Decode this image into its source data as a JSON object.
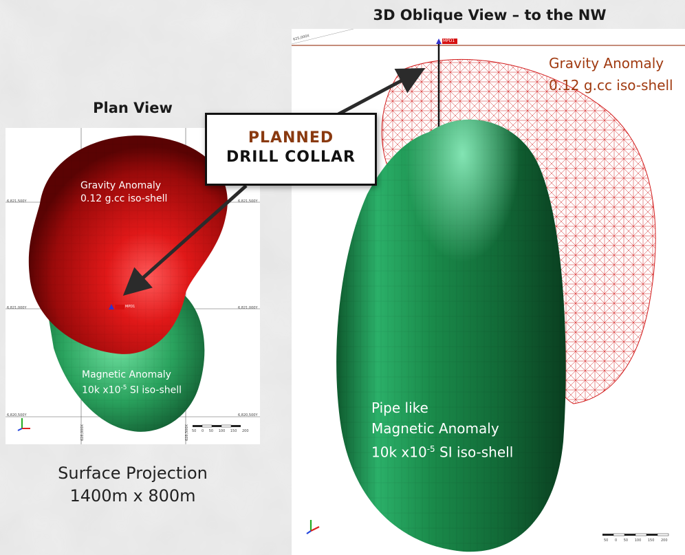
{
  "titles": {
    "oblique": "3D Oblique View – to the NW",
    "plan": "Plan View"
  },
  "callout": {
    "line1": "PLANNED",
    "line2": "DRILL COLLAR"
  },
  "plan_view": {
    "gravity_label_1": "Gravity Anomaly",
    "gravity_label_2": "0.12 g.cc iso-shell",
    "magnetic_label_1": "Magnetic Anomaly",
    "magnetic_label_2_prefix": "10k x10",
    "magnetic_label_2_sup": "-5",
    "magnetic_label_2_suffix": " SI iso-shell",
    "northings": [
      "6,821,500Y",
      "6,821,000Y",
      "6,820,500Y"
    ],
    "eastings": [
      "628,000X",
      "628,500X"
    ],
    "scale_ticks": [
      "50",
      "0",
      "50",
      "100",
      "150",
      "200"
    ],
    "collar_tag": "MPD1"
  },
  "oblique_view": {
    "gravity_label_1": "Gravity Anomaly",
    "gravity_label_2": "0.12 g.cc iso-shell",
    "pipe_label_1": "Pipe like",
    "pipe_label_2": "Magnetic Anomaly",
    "pipe_label_3_prefix": "10k x10",
    "pipe_label_3_sup": "-5",
    "pipe_label_3_suffix": " SI iso-shell",
    "easting": "625,000X",
    "scale_ticks": [
      "50",
      "0",
      "50",
      "100",
      "150",
      "200"
    ],
    "collar_tag": "MPD1"
  },
  "captions": {
    "line1": "Surface Projection",
    "line2": "1400m x 800m"
  },
  "colors": {
    "gravity_red": "#c41616",
    "magnetic_green": "#1e8a4a",
    "callout_accent": "#8a3a10",
    "oblique_label": "#a03a10"
  }
}
